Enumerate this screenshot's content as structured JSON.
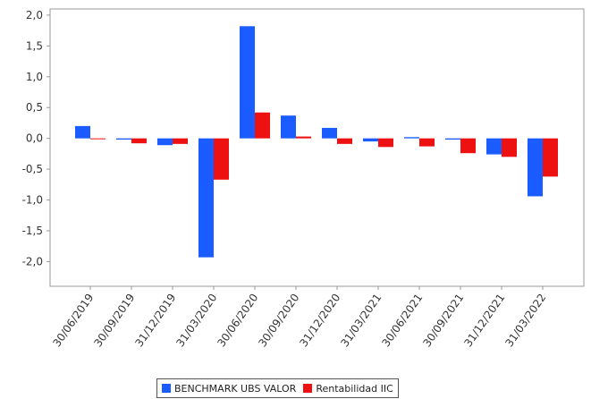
{
  "chart_data": {
    "type": "bar",
    "categories": [
      "30/06/2019",
      "30/09/2019",
      "31/12/2019",
      "31/03/2020",
      "30/06/2020",
      "30/09/2020",
      "31/12/2020",
      "31/03/2021",
      "30/06/2021",
      "30/09/2021",
      "31/12/2021",
      "31/03/2022"
    ],
    "series": [
      {
        "name": "BENCHMARK UBS VALOR",
        "color": "#1a5cff",
        "values": [
          0.2,
          -0.02,
          -0.11,
          -1.93,
          1.82,
          0.37,
          0.17,
          -0.05,
          0.02,
          -0.02,
          -0.26,
          -0.94
        ]
      },
      {
        "name": "Rentabilidad IIC",
        "color": "#ee1111",
        "values": [
          0.0,
          -0.08,
          -0.09,
          -0.67,
          0.42,
          0.03,
          -0.09,
          -0.14,
          -0.13,
          -0.24,
          -0.3,
          -0.62
        ]
      }
    ],
    "yticks": [
      "2,0",
      "1,5",
      "1,0",
      "0,5",
      "0,0",
      "-0,5",
      "-1,0",
      "-1,5",
      "-2,0"
    ],
    "ytick_values": [
      2.0,
      1.5,
      1.0,
      0.5,
      0.0,
      -0.5,
      -1.0,
      -1.5,
      -2.0
    ],
    "ylim": [
      -2.4,
      2.1
    ],
    "xlabel": "",
    "ylabel": "",
    "legend_position": "bottom-center",
    "grid": false
  }
}
